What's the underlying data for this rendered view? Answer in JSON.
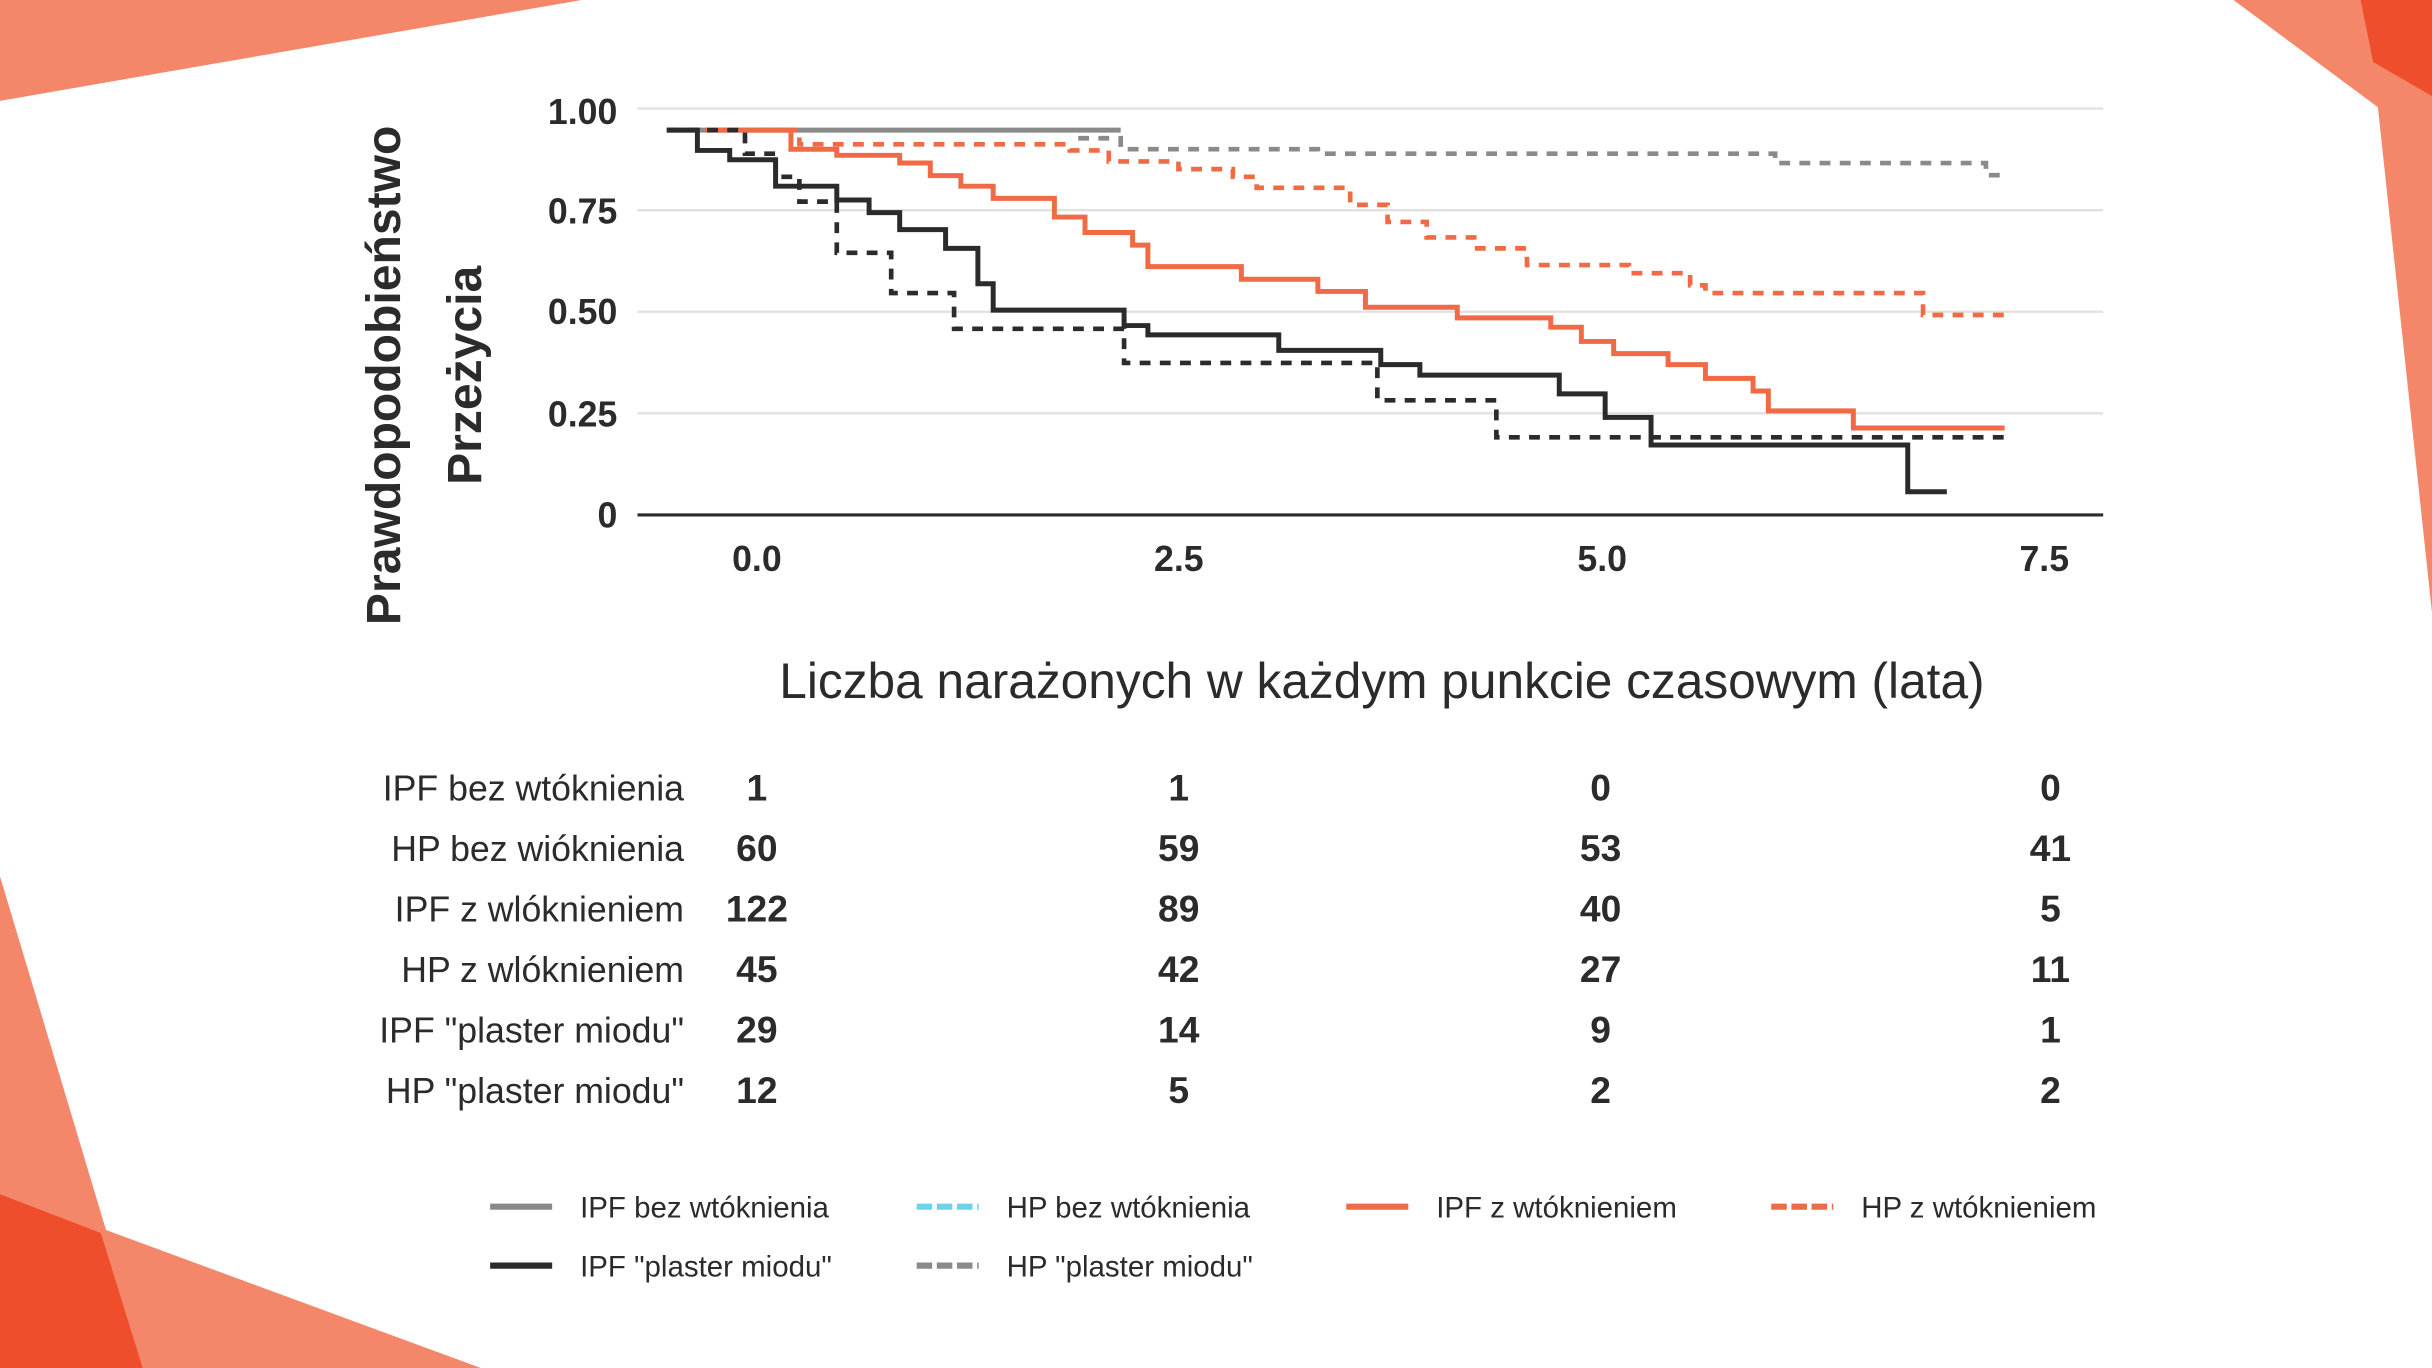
{
  "chart_data": {
    "type": "line",
    "step": true,
    "ylabel_lines": [
      "Prawdopodobieństwo",
      "Przeżycia"
    ],
    "risk_table_title": "Liczba narażonych w każdym punkcie czasowym (lata)",
    "x_ticks": [
      "0.0",
      "2.5",
      "5.0",
      "7.5"
    ],
    "x_tick_values": [
      0,
      2.5,
      5,
      7.5
    ],
    "y_ticks": [
      "1.00",
      "0.75",
      "0.50",
      "0.25",
      "0"
    ],
    "y_tick_values": [
      1,
      0.75,
      0.5,
      0.25,
      0
    ],
    "xlim": [
      -0.53,
      7.9
    ],
    "ylim": [
      0,
      1
    ],
    "grid": "horizontal",
    "legend_placement": "bottom",
    "colors": {
      "gray": "#8a8a88",
      "orange": "#ef6a45",
      "black": "#2b2b2b",
      "cyan": "#6dd3e6",
      "accent_light": "#f4876a",
      "accent_dark": "#ee4e2b"
    },
    "series": [
      {
        "color": "#8a8a88",
        "dash": false,
        "end": 2.14,
        "steps": [
          [
            -0.53,
            0.947
          ]
        ]
      },
      {
        "color": "#8a8a88",
        "dash": true,
        "end": 7.34,
        "steps": [
          [
            1.89,
            0.927
          ],
          [
            2.14,
            0.9
          ],
          [
            3.3,
            0.889
          ],
          [
            5.99,
            0.866
          ],
          [
            7.23,
            0.836
          ]
        ]
      },
      {
        "color": "#ef6a45",
        "dash": true,
        "end": 7.34,
        "steps": [
          [
            -0.3,
            0.947
          ],
          [
            0.25,
            0.912
          ],
          [
            1.84,
            0.897
          ],
          [
            2.07,
            0.87
          ],
          [
            2.48,
            0.851
          ],
          [
            2.8,
            0.832
          ],
          [
            2.94,
            0.805
          ],
          [
            3.49,
            0.763
          ],
          [
            3.71,
            0.721
          ],
          [
            3.94,
            0.683
          ],
          [
            4.22,
            0.656
          ],
          [
            4.53,
            0.615
          ],
          [
            5.13,
            0.595
          ],
          [
            5.49,
            0.565
          ],
          [
            5.58,
            0.546
          ],
          [
            6.86,
            0.492
          ]
        ]
      },
      {
        "color": "#ef6a45",
        "dash": false,
        "end": 7.34,
        "steps": [
          [
            -0.3,
            0.947
          ],
          [
            0.2,
            0.9
          ],
          [
            0.47,
            0.885
          ],
          [
            0.84,
            0.866
          ],
          [
            1.02,
            0.835
          ],
          [
            1.2,
            0.809
          ],
          [
            1.39,
            0.779
          ],
          [
            1.75,
            0.733
          ],
          [
            1.93,
            0.695
          ],
          [
            2.21,
            0.664
          ],
          [
            2.3,
            0.611
          ],
          [
            2.85,
            0.58
          ],
          [
            3.3,
            0.55
          ],
          [
            3.58,
            0.511
          ],
          [
            4.12,
            0.485
          ],
          [
            4.67,
            0.462
          ],
          [
            4.85,
            0.427
          ],
          [
            5.04,
            0.397
          ],
          [
            5.36,
            0.37
          ],
          [
            5.58,
            0.336
          ],
          [
            5.86,
            0.305
          ],
          [
            5.95,
            0.256
          ],
          [
            6.45,
            0.214
          ]
        ]
      },
      {
        "color": "#2b2b2b",
        "dash": false,
        "end": 7.0,
        "steps": [
          [
            -0.53,
            0.947
          ],
          [
            -0.35,
            0.897
          ],
          [
            -0.16,
            0.874
          ],
          [
            0.11,
            0.809
          ],
          [
            0.47,
            0.775
          ],
          [
            0.66,
            0.744
          ],
          [
            0.84,
            0.702
          ],
          [
            1.11,
            0.656
          ],
          [
            1.3,
            0.569
          ],
          [
            1.39,
            0.504
          ],
          [
            2.16,
            0.466
          ],
          [
            2.3,
            0.443
          ],
          [
            3.07,
            0.405
          ],
          [
            3.67,
            0.37
          ],
          [
            3.9,
            0.344
          ],
          [
            4.72,
            0.298
          ],
          [
            4.99,
            0.24
          ],
          [
            5.26,
            0.172
          ],
          [
            6.77,
            0.057
          ]
        ]
      },
      {
        "color": "#2b2b2b",
        "dash": true,
        "end": 7.34,
        "steps": [
          [
            -0.53,
            0.947
          ],
          [
            -0.07,
            0.889
          ],
          [
            0.11,
            0.832
          ],
          [
            0.25,
            0.771
          ],
          [
            0.47,
            0.645
          ],
          [
            0.79,
            0.546
          ],
          [
            1.16,
            0.458
          ],
          [
            2.16,
            0.374
          ],
          [
            3.65,
            0.282
          ],
          [
            4.35,
            0.191
          ]
        ]
      }
    ],
    "risk_table": {
      "columns": [
        "0.0",
        "2.5",
        "5.0",
        "7.5"
      ],
      "rows": [
        {
          "label": "IPF bez wtóknienia",
          "values": [
            "1",
            "1",
            "0",
            "0"
          ]
        },
        {
          "label": "HP bez wióknienia",
          "values": [
            "60",
            "59",
            "53",
            "41"
          ]
        },
        {
          "label": "IPF z wlóknieniem",
          "values": [
            "122",
            "89",
            "40",
            "5"
          ]
        },
        {
          "label": "HP z wlóknieniem",
          "values": [
            "45",
            "42",
            "27",
            "11"
          ]
        },
        {
          "label": "IPF \"plaster miodu\"",
          "values": [
            "29",
            "14",
            "9",
            "1"
          ]
        },
        {
          "label": "HP \"plaster miodu\"",
          "values": [
            "12",
            "5",
            "2",
            "2"
          ]
        }
      ]
    },
    "legend": [
      {
        "label": "IPF bez wtóknienia",
        "color": "#8a8a88",
        "dash": false
      },
      {
        "label": "HP bez wtóknienia",
        "color": "#6dd3e6",
        "dash": true
      },
      {
        "label": "IPF z wtóknieniem",
        "color": "#ef6a45",
        "dash": false
      },
      {
        "label": "HP z wtóknieniem",
        "color": "#ef6a45",
        "dash": true
      },
      {
        "label": "IPF \"plaster miodu\"",
        "color": "#2b2b2b",
        "dash": false
      },
      {
        "label": "HP \"plaster miodu\"",
        "color": "#8a8a88",
        "dash": true
      }
    ]
  }
}
